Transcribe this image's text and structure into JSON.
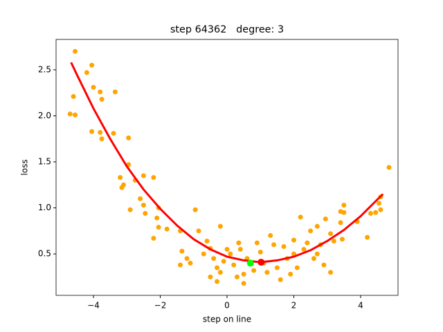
{
  "chart_data": {
    "type": "scatter",
    "title": "step 64362   degree: 3",
    "x_label": "step on line",
    "y_label": "loss",
    "xlim": [
      -5.12,
      5.12
    ],
    "ylim": [
      0.05,
      2.83
    ],
    "xticks": [
      {
        "value": -4,
        "label": "−4"
      },
      {
        "value": -2,
        "label": "−2"
      },
      0,
      2,
      4
    ],
    "yticks": [
      0.5,
      {
        "value": 1.0,
        "label": "1.0"
      },
      1.5,
      {
        "value": 2.0,
        "label": "2.0"
      },
      2.5
    ],
    "points": {
      "color": "#ffa500",
      "x": [
        -4.55,
        -4.6,
        -4.55,
        -4.7,
        -4.2,
        -4.05,
        -4.0,
        -3.8,
        -3.75,
        -3.35,
        -4.05,
        -3.8,
        -3.75,
        -3.4,
        -2.95,
        -3.2,
        -3.15,
        -3.1,
        -2.95,
        -2.75,
        -2.5,
        -2.2,
        -2.6,
        -2.5,
        -2.9,
        -2.45,
        -2.05,
        -2.1,
        -2.05,
        -1.8,
        -2.2,
        -1.4,
        -1.35,
        -1.2,
        -1.1,
        -1.4,
        -0.95,
        -0.85,
        -0.6,
        -0.2,
        -0.5,
        -0.4,
        -0.3,
        -0.5,
        -0.3,
        0,
        0.1,
        0.2,
        0.35,
        0.5,
        0.5,
        0.8,
        1,
        1.2,
        1.4,
        1.6,
        1.8,
        2,
        2.1,
        2.3,
        2.2,
        2.5,
        2.6,
        2.7,
        2.8,
        2.95,
        2.9,
        3.1,
        3.2,
        3.4,
        3.4,
        3.5,
        3.5,
        3.45,
        3.9,
        4.2,
        4.3,
        4.45,
        4.6,
        4.6,
        4.55,
        4.85,
        3.1,
        1.9,
        0.6,
        -0.1,
        1.3,
        1.7,
        2.4,
        0.9,
        -0.7,
        -0.2,
        0.3,
        1.1,
        2.7,
        2.0,
        1.5,
        0.4
      ],
      "y": [
        2.7,
        2.21,
        2.01,
        2.02,
        2.47,
        2.55,
        2.31,
        2.26,
        2.18,
        2.26,
        1.83,
        1.82,
        1.75,
        1.81,
        1.76,
        1.33,
        1.22,
        1.25,
        1.47,
        1.3,
        1.35,
        1.33,
        1.1,
        1.03,
        0.98,
        0.94,
        1.0,
        0.89,
        0.79,
        0.77,
        0.67,
        0.75,
        0.53,
        0.45,
        0.4,
        0.38,
        0.98,
        0.75,
        0.64,
        0.8,
        0.56,
        0.45,
        0.35,
        0.25,
        0.2,
        0.55,
        0.5,
        0.38,
        0.62,
        0.28,
        0.18,
        0.32,
        0.52,
        0.3,
        0.6,
        0.22,
        0.45,
        0.65,
        0.35,
        0.55,
        0.9,
        0.75,
        0.45,
        0.8,
        0.6,
        0.88,
        0.38,
        0.72,
        0.64,
        0.84,
        0.96,
        1.03,
        0.95,
        0.66,
        0.85,
        0.68,
        0.94,
        0.95,
        0.98,
        1.12,
        1.05,
        1.44,
        0.3,
        0.28,
        0.45,
        0.42,
        0.7,
        0.58,
        0.62,
        0.62,
        0.5,
        0.3,
        0.25,
        0.4,
        0.5,
        0.5,
        0.35,
        0.55
      ]
    },
    "curve": {
      "color": "#ff0000",
      "x": [
        -4.67,
        -4.5,
        -4,
        -3.5,
        -3,
        -2.5,
        -2,
        -1.5,
        -1,
        -0.5,
        0,
        0.5,
        1,
        1.5,
        2,
        2.5,
        3,
        3.5,
        4,
        4.5,
        4.67
      ],
      "y": [
        2.58,
        2.45,
        2.08,
        1.75,
        1.45,
        1.2,
        0.99,
        0.81,
        0.66,
        0.55,
        0.47,
        0.43,
        0.41,
        0.43,
        0.47,
        0.54,
        0.64,
        0.76,
        0.91,
        1.09,
        1.15
      ]
    },
    "markers": [
      {
        "x": 0.7,
        "y": 0.4,
        "color": "#00ff00"
      },
      {
        "x": 1.02,
        "y": 0.41,
        "color": "#ff0000"
      }
    ]
  }
}
